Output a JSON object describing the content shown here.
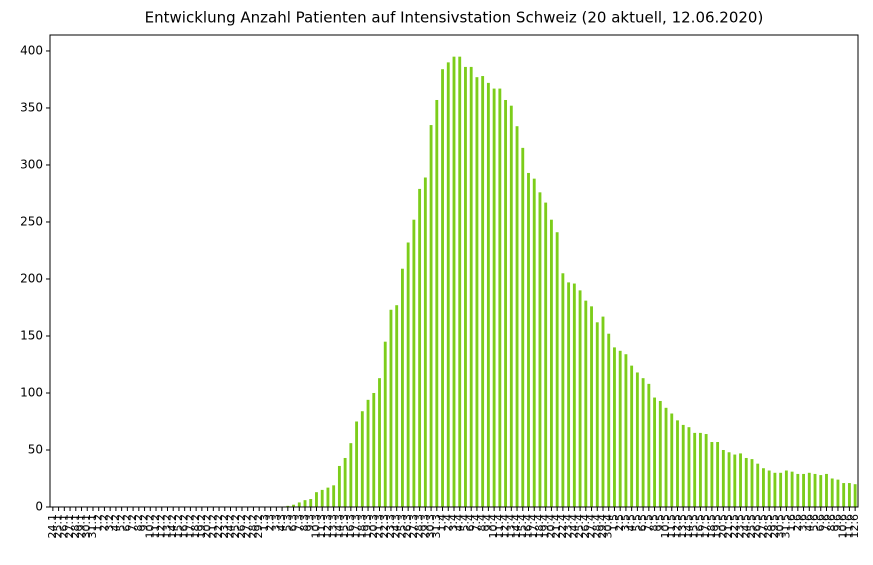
{
  "chart_data": {
    "type": "bar",
    "title": "Entwicklung Anzahl Patienten auf Intensivstation Schweiz (20 aktuell, 12.06.2020)",
    "color": "#7ccd1a",
    "categories": [
      "24.1",
      "25.1",
      "26.1",
      "27.1",
      "28.1",
      "29.1",
      "30.1",
      "31.1",
      "1.2",
      "2.2",
      "3.2",
      "4.2",
      "5.2",
      "6.2",
      "7.2",
      "8.2",
      "9.2",
      "10.2",
      "11.2",
      "12.2",
      "13.2",
      "14.2",
      "15.2",
      "16.2",
      "17.2",
      "18.2",
      "19.2",
      "20.2",
      "21.2",
      "22.2",
      "23.2",
      "24.2",
      "25.2",
      "26.2",
      "27.2",
      "28.2",
      "29.2",
      "1.3",
      "2.3",
      "3.3",
      "4.3",
      "5.3",
      "6.3",
      "7.3",
      "8.3",
      "9.3",
      "10.3",
      "11.3",
      "12.3",
      "13.3",
      "14.3",
      "15.3",
      "16.3",
      "17.3",
      "18.3",
      "19.3",
      "20.3",
      "21.3",
      "22.3",
      "23.3",
      "24.3",
      "25.3",
      "26.3",
      "27.3",
      "28.3",
      "29.3",
      "30.3",
      "31.3",
      "1.4",
      "2.4",
      "3.4",
      "4.4",
      "5.4",
      "6.4",
      "7.4",
      "8.4",
      "9.4",
      "10.4",
      "11.4",
      "12.4",
      "13.4",
      "14.4",
      "15.4",
      "16.4",
      "17.4",
      "18.4",
      "19.4",
      "20.4",
      "21.4",
      "22.4",
      "23.4",
      "24.4",
      "25.4",
      "26.4",
      "27.4",
      "28.4",
      "29.4",
      "30.4",
      "1.5",
      "2.5",
      "3.5",
      "4.5",
      "5.5",
      "6.5",
      "7.5",
      "8.5",
      "9.5",
      "10.5",
      "11.5",
      "12.5",
      "13.5",
      "14.5",
      "15.5",
      "16.5",
      "17.5",
      "18.5",
      "19.5",
      "20.5",
      "21.5",
      "22.5",
      "23.5",
      "24.5",
      "25.5",
      "26.5",
      "27.5",
      "28.5",
      "29.5",
      "30.5",
      "31.5",
      "1.6",
      "2.6",
      "3.6",
      "4.6",
      "5.6",
      "6.6",
      "7.6",
      "8.6",
      "9.6",
      "10.6",
      "11.6",
      "12.6"
    ],
    "values": [
      0,
      0,
      0,
      0,
      0,
      0,
      0,
      0,
      0,
      0,
      0,
      0,
      0,
      0,
      0,
      0,
      0,
      0,
      0,
      0,
      0,
      0,
      0,
      0,
      0,
      0,
      0,
      0,
      0,
      0,
      0,
      0,
      0,
      0,
      0,
      0,
      0,
      0,
      0,
      0,
      0,
      1,
      2,
      4,
      6,
      7,
      13,
      15,
      17,
      19,
      36,
      43,
      56,
      75,
      84,
      94,
      100,
      113,
      145,
      173,
      177,
      209,
      232,
      252,
      279,
      289,
      335,
      357,
      384,
      390,
      395,
      395,
      386,
      386,
      377,
      378,
      372,
      367,
      367,
      357,
      352,
      334,
      315,
      293,
      288,
      276,
      267,
      252,
      241,
      205,
      197,
      196,
      190,
      181,
      176,
      162,
      167,
      152,
      140,
      137,
      134,
      124,
      118,
      113,
      108,
      96,
      93,
      87,
      82,
      76,
      72,
      70,
      65,
      65,
      64,
      57,
      57,
      50,
      48,
      46,
      47,
      43,
      42,
      38,
      34,
      32,
      30,
      30,
      32,
      31,
      29,
      29,
      30,
      29,
      28,
      29,
      25,
      24,
      21,
      21,
      20
    ],
    "ylim": [
      0,
      414
    ],
    "yticks": [
      0,
      50,
      100,
      150,
      200,
      250,
      300,
      350,
      400
    ]
  }
}
